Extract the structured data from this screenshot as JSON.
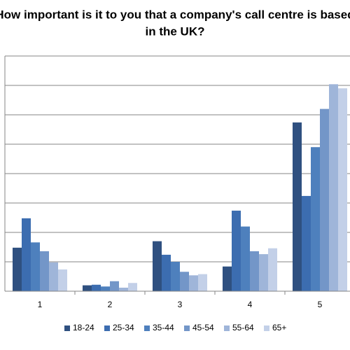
{
  "chart_data": {
    "type": "bar",
    "title_lines": [
      "How important is it to you that a company's call centre is based",
      "in the UK?"
    ],
    "categories": [
      "1",
      "2",
      "3",
      "4",
      "5"
    ],
    "series": [
      {
        "name": "18-24",
        "color": "#2f5080",
        "values": [
          7.4,
          1.0,
          8.5,
          4.2,
          28.7
        ]
      },
      {
        "name": "25-34",
        "color": "#3c6db0",
        "values": [
          12.4,
          1.1,
          6.2,
          13.7,
          16.2
        ]
      },
      {
        "name": "35-44",
        "color": "#4e80bd",
        "values": [
          8.3,
          0.8,
          5.0,
          11.0,
          24.5
        ]
      },
      {
        "name": "45-54",
        "color": "#7396c8",
        "values": [
          6.8,
          1.7,
          3.3,
          6.8,
          31.0
        ]
      },
      {
        "name": "55-64",
        "color": "#9fb5d9",
        "values": [
          4.9,
          0.6,
          2.7,
          6.3,
          35.2
        ]
      },
      {
        "name": "65+",
        "color": "#c3d0e8",
        "values": [
          3.7,
          1.4,
          2.9,
          7.3,
          34.5
        ]
      }
    ],
    "ylim": [
      0,
      40
    ],
    "yticks": [
      0,
      5,
      10,
      15,
      20,
      25,
      30,
      35,
      40
    ],
    "grid": true,
    "legend": "bottom"
  }
}
